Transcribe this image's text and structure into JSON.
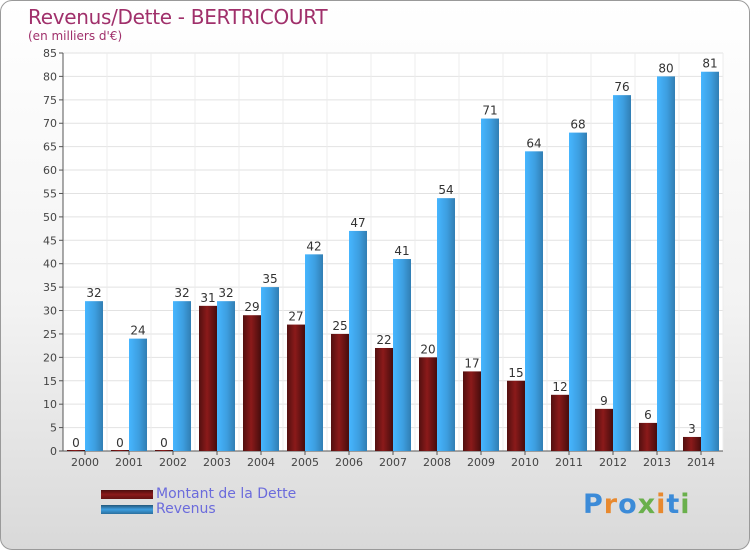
{
  "header": {
    "title": "Revenus/Dette - BERTRICOURT",
    "subtitle": "(en milliers d'€)"
  },
  "legend": {
    "items": [
      {
        "label": "Montant de la Dette",
        "color": "#8b1a1a"
      },
      {
        "label": "Revenus",
        "color": "#3d9ee0"
      }
    ]
  },
  "logo": {
    "text": "Proxiti",
    "colors": [
      "#3c8bd8",
      "#e8892e",
      "#3c8bd8",
      "#6ab04c",
      "#e8892e",
      "#3c8bd8",
      "#6ab04c"
    ]
  },
  "chart_data": {
    "type": "bar",
    "title": "Revenus/Dette - BERTRICOURT",
    "subtitle": "(en milliers d'€)",
    "categories": [
      "2000",
      "2001",
      "2002",
      "2003",
      "2004",
      "2005",
      "2006",
      "2007",
      "2008",
      "2009",
      "2010",
      "2011",
      "2012",
      "2013",
      "2014"
    ],
    "series": [
      {
        "name": "Montant de la Dette",
        "color": "#8b1a1a",
        "values": [
          0,
          0,
          0,
          31,
          29,
          27,
          25,
          22,
          20,
          17,
          15,
          12,
          9,
          6,
          3
        ]
      },
      {
        "name": "Revenus",
        "color": "#3d9ee0",
        "values": [
          32,
          24,
          32,
          32,
          35,
          42,
          47,
          41,
          54,
          71,
          64,
          68,
          76,
          80,
          81
        ]
      }
    ],
    "ylim": [
      0,
      85
    ],
    "yticks": [
      0,
      5,
      10,
      15,
      20,
      25,
      30,
      35,
      40,
      45,
      50,
      55,
      60,
      65,
      70,
      75,
      80,
      85
    ],
    "grid": true,
    "legend_position": "bottom-left"
  }
}
